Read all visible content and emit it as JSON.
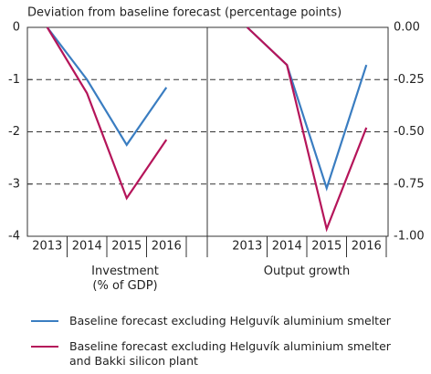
{
  "chart_data": [
    {
      "type": "line",
      "title": "Deviation from baseline forecast (percentage points)",
      "xlabel": "Investment\n(% of GDP)",
      "categories": [
        "2013",
        "2014",
        "2015",
        "2016"
      ],
      "series": [
        {
          "name": "Baseline forecast excluding Helguvík aluminium smelter",
          "color": "#3a7dc1",
          "values": [
            0,
            -1.0,
            -2.25,
            -1.15
          ]
        },
        {
          "name": "Baseline forecast excluding Helguvík aluminium smelter\nand Bakki silicon plant",
          "color": "#b5155a",
          "values": [
            0,
            -1.26,
            -3.27,
            -2.15
          ]
        }
      ],
      "ylim": [
        -4,
        0
      ],
      "yticks": [
        0,
        -1,
        -2,
        -3,
        -4
      ],
      "grid": true
    },
    {
      "type": "line",
      "xlabel": "Output growth",
      "categories": [
        "2013",
        "2014",
        "2015",
        "2016"
      ],
      "series": [
        {
          "color": "#3a7dc1",
          "values": [
            0,
            -0.18,
            -0.77,
            -0.18
          ]
        },
        {
          "color": "#b5155a",
          "values": [
            0,
            -0.18,
            -0.965,
            -0.48
          ]
        }
      ],
      "ylim": [
        -1,
        0
      ],
      "yticks": [
        {
          "value": 0,
          "label": "0.00"
        },
        {
          "value": -0.25,
          "label": "-0.25"
        },
        {
          "value": -0.5,
          "label": "-0.50"
        },
        {
          "value": -0.75,
          "label": "-0.75"
        },
        {
          "value": -1,
          "label": "-1.00"
        }
      ]
    }
  ]
}
